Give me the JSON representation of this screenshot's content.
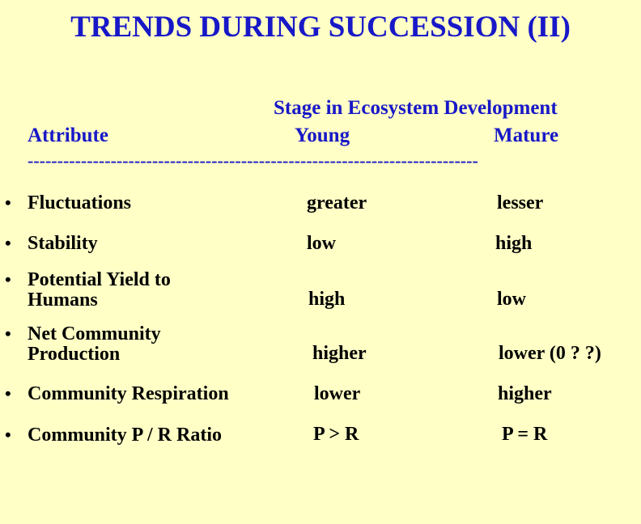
{
  "title": "TRENDS DURING SUCCESSION (II)",
  "header": {
    "stage_label": "Stage in Ecosystem  Development",
    "attribute_label": "Attribute",
    "young_label": "Young",
    "mature_label": "Mature",
    "divider": "----------------------------------------------------------------------------"
  },
  "bullet": "•",
  "rows": [
    {
      "attribute_line1": "Fluctuations",
      "attribute_line2": "",
      "young": "greater",
      "mature": "lesser"
    },
    {
      "attribute_line1": "Stability",
      "attribute_line2": "",
      "young": "low",
      "mature": "high"
    },
    {
      "attribute_line1": "Potential Yield to",
      "attribute_line2": "Humans",
      "young": "high",
      "mature": "low"
    },
    {
      "attribute_line1": "Net Community",
      "attribute_line2": "Production",
      "young": "higher",
      "mature": "lower (0 ? ?)"
    },
    {
      "attribute_line1": "Community Respiration",
      "attribute_line2": "",
      "young": "lower",
      "mature": "higher"
    },
    {
      "attribute_line1": "Community P / R Ratio",
      "attribute_line2": "",
      "young": "P > R",
      "mature": "P = R"
    }
  ],
  "colors": {
    "background": "#FFFFC6",
    "heading": "#1818C8",
    "body_text": "#000000"
  }
}
